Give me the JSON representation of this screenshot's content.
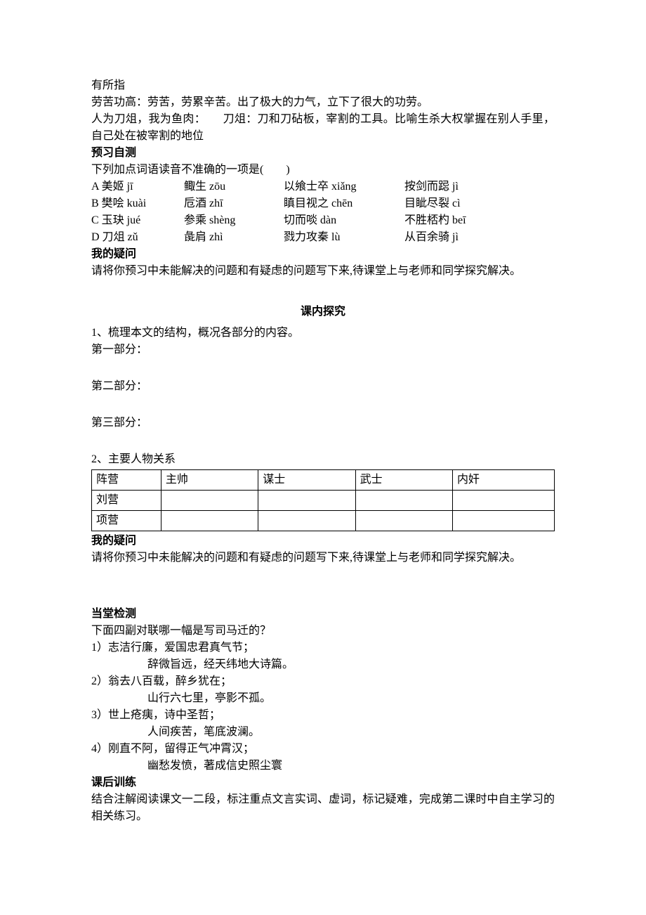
{
  "intro": {
    "line1": "有所指",
    "line2": "劳苦功高：劳苦，劳累辛苦。出了极大的力气，立下了很大的功劳。",
    "line3": "人为刀俎，我为鱼肉：　　刀俎：刀和刀砧板，宰割的工具。比喻生杀大权掌握在别人手里，自己处在被宰割的地位"
  },
  "preview": {
    "heading": "预习自测",
    "question": "下列加点词语读音不准确的一项是(　　)",
    "rows": [
      {
        "a": " A 美姬 jī",
        "b": "鲰生 zōu",
        "c": "以飨士卒 xiǎng",
        "d": "按剑而跽 jì"
      },
      {
        "a": " B 樊哙 kuài",
        "b": "卮酒 zhī",
        "c": "瞋目视之 chēn",
        "d": "目眦尽裂 cì"
      },
      {
        "a": " C 玉玦 jué",
        "b": "参乘 shèng",
        "c": "切而啖 dàn",
        "d": "不胜桮杓 beī"
      },
      {
        "a": " D 刀俎 zǔ",
        "b": "彘肩 zhì",
        "c": "戮力攻秦 lù",
        "d": "从百余骑 jì"
      }
    ]
  },
  "myq1": {
    "heading": "我的疑问",
    "text": "请将你预习中未能解决的问题和有疑虑的问题写下来,待课堂上与老师和同学探究解决。"
  },
  "inclass": {
    "heading": "课内探究",
    "q1": "1、梳理本文的结构，概况各部分的内容。",
    "p1": "第一部分：",
    "p2": "第二部分：",
    "p3": "第三部分：",
    "q2": "2、主要人物关系"
  },
  "table": {
    "headers": [
      "阵营",
      "主帅",
      "谋士",
      "武士",
      "内奸"
    ],
    "rows": [
      [
        "刘营",
        "",
        "",
        "",
        ""
      ],
      [
        "项营",
        "",
        "",
        "",
        ""
      ]
    ],
    "col_widths": [
      "15%",
      "21%",
      "21%",
      "21%",
      "22%"
    ]
  },
  "myq2": {
    "heading": "我的疑问",
    "text": "请将你预习中未能解决的问题和有疑虑的问题写下来,待课堂上与老师和同学探究解决。"
  },
  "quiz": {
    "heading": "当堂检测",
    "question": "下面四副对联哪一幅是写司马迁的？",
    "items": [
      {
        "n": "1）志洁行廉，爱国忠君真气节；",
        "s": "辞微旨远，经天纬地大诗篇。"
      },
      {
        "n": "2）翁去八百载，醉乡犹在；",
        "s": "山行六七里，亭影不孤。"
      },
      {
        "n": "3）世上疮痍，诗中圣哲；",
        "s": "人间疾苦，笔底波澜。"
      },
      {
        "n": "4）刚直不阿，留得正气冲霄汉；",
        "s": "幽愁发愤，著成信史照尘寰"
      }
    ]
  },
  "after": {
    "heading": "课后训练",
    "text": "结合注解阅读课文一二段，标注重点文言实词、虚词，标记疑难，完成第二课时中自主学习的相关练习。"
  }
}
